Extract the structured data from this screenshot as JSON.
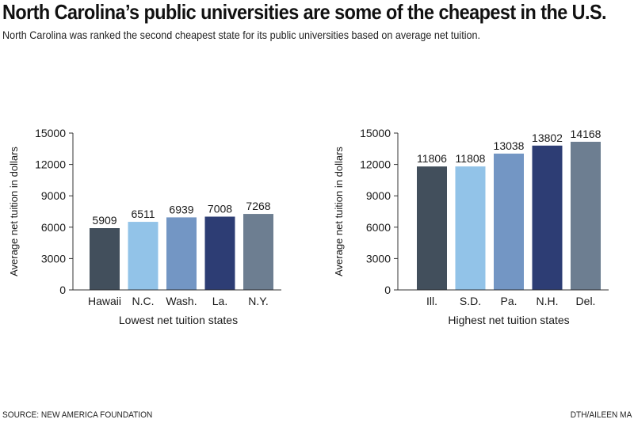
{
  "header": {
    "title": "North Carolina’s public universities are some of the cheapest in the U.S.",
    "subtitle": "North Carolina was ranked the second cheapest state for its public universities based on average net tuition."
  },
  "footer": {
    "source": "SOURCE: NEW AMERICA FOUNDATION",
    "credit": "DTH/AILEEN MA"
  },
  "chart_data": [
    {
      "type": "bar",
      "xlabel": "Lowest net tuition states",
      "ylabel": "Average net tuition in dollars",
      "categories": [
        "Hawaii",
        "N.C.",
        "Wash.",
        "La.",
        "N.Y."
      ],
      "values": [
        5909,
        6511,
        6939,
        7008,
        7268
      ],
      "colors": [
        "#424f5c",
        "#92c3e8",
        "#7396c4",
        "#2d3d74",
        "#6d7e91"
      ],
      "ylim": [
        0,
        15000
      ],
      "yticks": [
        0,
        3000,
        6000,
        9000,
        12000,
        15000
      ],
      "grid": false,
      "legend": "none"
    },
    {
      "type": "bar",
      "xlabel": "Highest net tuition states",
      "ylabel": "Average net tuition in dollars",
      "categories": [
        "Ill.",
        "S.D.",
        "Pa.",
        "N.H.",
        "Del."
      ],
      "values": [
        11806,
        11808,
        13038,
        13802,
        14168
      ],
      "colors": [
        "#424f5c",
        "#92c3e8",
        "#7396c4",
        "#2d3d74",
        "#6d7e91"
      ],
      "ylim": [
        0,
        15000
      ],
      "yticks": [
        0,
        3000,
        6000,
        9000,
        12000,
        15000
      ],
      "grid": false,
      "legend": "none"
    }
  ]
}
